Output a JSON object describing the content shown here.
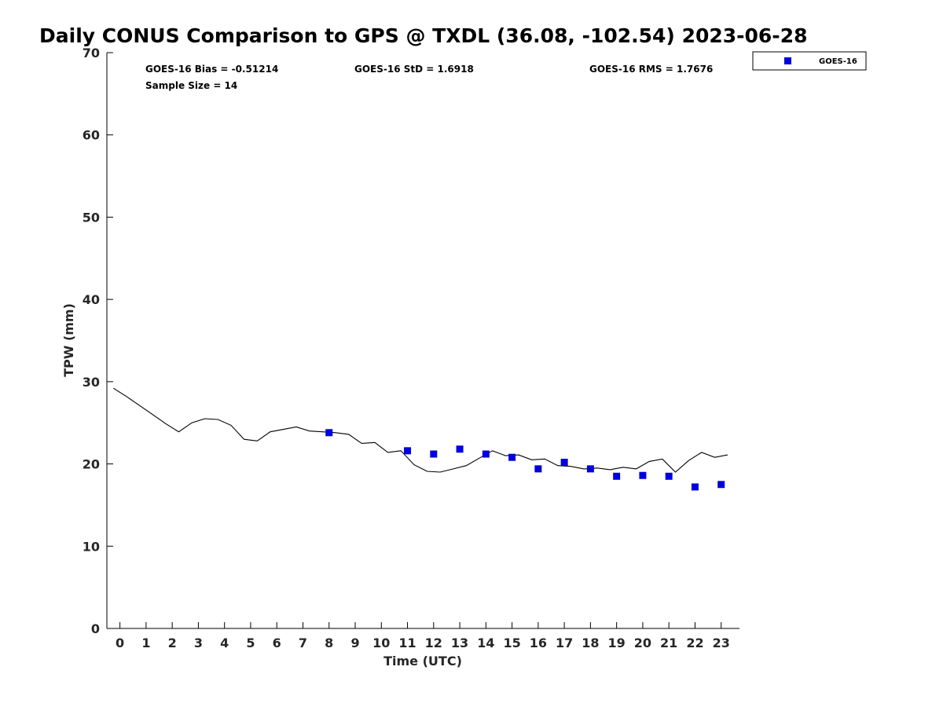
{
  "chart_data": {
    "type": "scatter",
    "title": "Daily CONUS Comparison to GPS @ TXDL (36.08, -102.54) 2023-06-28",
    "xlabel": "Time (UTC)",
    "ylabel": "TPW (mm)",
    "xlim": [
      -0.5,
      23.7
    ],
    "ylim": [
      0,
      70
    ],
    "x_ticks": [
      0,
      1,
      2,
      3,
      4,
      5,
      6,
      7,
      8,
      9,
      10,
      11,
      12,
      13,
      14,
      15,
      16,
      17,
      18,
      19,
      20,
      21,
      22,
      23
    ],
    "y_ticks": [
      0,
      10,
      20,
      30,
      40,
      50,
      60,
      70
    ],
    "grid": false,
    "legend_position": "top-right outside",
    "stats": {
      "bias": "GOES-16 Bias = -0.51214",
      "std": "GOES-16 StD = 1.6918",
      "rms": "GOES-16 RMS = 1.7676",
      "sample": "Sample Size = 14"
    },
    "series": [
      {
        "name": "GOES-16",
        "kind": "scatter",
        "marker": "square",
        "color": "#0000dd",
        "x": [
          8,
          11,
          12,
          13,
          14,
          15,
          16,
          17,
          18,
          19,
          20,
          21,
          22,
          23
        ],
        "y": [
          23.8,
          21.6,
          21.2,
          21.8,
          21.2,
          20.8,
          19.4,
          20.2,
          19.4,
          18.5,
          18.6,
          18.5,
          17.2,
          17.5
        ]
      },
      {
        "kind": "line",
        "color": "#000000",
        "x": [
          -0.25,
          0.25,
          0.75,
          1.25,
          1.75,
          2.25,
          2.75,
          3.25,
          3.75,
          4.25,
          4.75,
          5.25,
          5.75,
          6.25,
          6.75,
          7.25,
          7.75,
          8.25,
          8.75,
          9.25,
          9.75,
          10.25,
          10.75,
          11.25,
          11.75,
          12.25,
          12.75,
          13.25,
          13.75,
          14.25,
          14.75,
          15.25,
          15.75,
          16.25,
          16.75,
          17.25,
          17.75,
          18.25,
          18.75,
          19.25,
          19.75,
          20.25,
          20.75,
          21.25,
          21.75,
          22.25,
          22.75,
          23.25
        ],
        "y": [
          29.2,
          28.2,
          27.1,
          26.0,
          24.9,
          23.9,
          25.0,
          25.5,
          25.4,
          24.7,
          23.0,
          22.8,
          23.9,
          24.2,
          24.5,
          24.0,
          23.9,
          23.8,
          23.6,
          22.5,
          22.6,
          21.4,
          21.6,
          19.9,
          19.1,
          19.0,
          19.4,
          19.8,
          20.7,
          21.6,
          21.0,
          21.1,
          20.5,
          20.6,
          19.8,
          19.7,
          19.4,
          19.5,
          19.3,
          19.6,
          19.4,
          20.3,
          20.6,
          19.0,
          20.4,
          21.4,
          20.8,
          21.1
        ]
      }
    ]
  }
}
